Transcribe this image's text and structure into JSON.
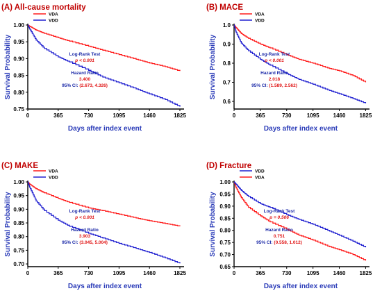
{
  "colors": {
    "VDA": "#ff1a1a",
    "VDD": "#2020d0",
    "title": "#c00000",
    "axis_label": "#2a3bb8",
    "annotation_blue": "#1c2aa8",
    "annotation_red": "#e01515"
  },
  "chart_data": [
    {
      "type": "line",
      "title": "(A) All-cause mortality",
      "xlabel": "Days after index event",
      "ylabel": "Survival Probability",
      "xlim": [
        0,
        1850
      ],
      "ylim": [
        0.75,
        1.0
      ],
      "xticks": [
        0,
        365,
        730,
        1095,
        1460,
        1825
      ],
      "yticks": [
        0.75,
        0.8,
        0.85,
        0.9,
        0.95,
        1.0
      ],
      "ytick_labels": [
        "0.75",
        "0.80",
        "0.85",
        "0.90",
        "0.95",
        "1.00"
      ],
      "legend_order": [
        "VDA",
        "VDD"
      ],
      "series": [
        {
          "name": "VDA",
          "x": [
            0,
            30,
            100,
            200,
            365,
            500,
            730,
            900,
            1095,
            1300,
            1460,
            1650,
            1825
          ],
          "values": [
            1.0,
            0.995,
            0.985,
            0.975,
            0.962,
            0.952,
            0.937,
            0.925,
            0.912,
            0.898,
            0.887,
            0.876,
            0.863
          ]
        },
        {
          "name": "VDD",
          "x": [
            0,
            30,
            100,
            200,
            365,
            500,
            730,
            900,
            1095,
            1300,
            1460,
            1650,
            1825
          ],
          "values": [
            1.0,
            0.985,
            0.955,
            0.93,
            0.905,
            0.89,
            0.865,
            0.845,
            0.828,
            0.81,
            0.795,
            0.778,
            0.757
          ]
        }
      ],
      "annotations": {
        "test_label": "Log-Rank Test",
        "p_value": "p < 0.001",
        "hr_label": "Hazard Ratio",
        "hr_value": "3.400",
        "ci_prefix": "95% CI:",
        "ci_value": "(2.673, 4.326)"
      }
    },
    {
      "type": "line",
      "title": "(B) MACE",
      "xlabel": "Days after index event",
      "ylabel": "Survival Probability",
      "xlim": [
        0,
        1850
      ],
      "ylim": [
        0.56,
        1.0
      ],
      "xticks": [
        0,
        365,
        730,
        1095,
        1460,
        1825
      ],
      "yticks": [
        0.6,
        0.7,
        0.8,
        0.9,
        1.0
      ],
      "ytick_labels": [
        "0.6",
        "0.7",
        "0.8",
        "0.9",
        "1.0"
      ],
      "legend_order": [
        "VDA",
        "VDD"
      ],
      "series": [
        {
          "name": "VDA",
          "x": [
            0,
            30,
            100,
            200,
            365,
            500,
            730,
            900,
            1095,
            1300,
            1460,
            1650,
            1825
          ],
          "values": [
            1.0,
            0.985,
            0.955,
            0.93,
            0.9,
            0.88,
            0.845,
            0.82,
            0.8,
            0.775,
            0.76,
            0.735,
            0.7
          ]
        },
        {
          "name": "VDD",
          "x": [
            0,
            30,
            100,
            200,
            365,
            500,
            730,
            900,
            1095,
            1300,
            1460,
            1650,
            1825
          ],
          "values": [
            1.0,
            0.96,
            0.905,
            0.865,
            0.82,
            0.79,
            0.745,
            0.715,
            0.69,
            0.66,
            0.64,
            0.615,
            0.59
          ]
        }
      ],
      "annotations": {
        "test_label": "Log-Rank Test",
        "p_value": "p < 0.001",
        "hr_label": "Hazard Ratio",
        "hr_value": "2.018",
        "ci_prefix": "95% CI:",
        "ci_value": "(1.589, 2.562)"
      }
    },
    {
      "type": "line",
      "title": "(C) MAKE",
      "xlabel": "Days after index event",
      "ylabel": "Survival Probability",
      "xlim": [
        0,
        1850
      ],
      "ylim": [
        0.69,
        1.0
      ],
      "xticks": [
        0,
        365,
        730,
        1095,
        1460,
        1825
      ],
      "yticks": [
        0.7,
        0.75,
        0.8,
        0.85,
        0.9,
        0.95,
        1.0
      ],
      "ytick_labels": [
        "0.70",
        "0.75",
        "0.80",
        "0.85",
        "0.90",
        "0.95",
        "1.00"
      ],
      "legend_order": [
        "VDA",
        "VDD"
      ],
      "series": [
        {
          "name": "VDA",
          "x": [
            0,
            30,
            100,
            200,
            365,
            500,
            730,
            900,
            1095,
            1300,
            1460,
            1650,
            1825
          ],
          "values": [
            1.0,
            0.99,
            0.975,
            0.96,
            0.94,
            0.925,
            0.905,
            0.895,
            0.882,
            0.868,
            0.858,
            0.848,
            0.838
          ]
        },
        {
          "name": "VDD",
          "x": [
            0,
            30,
            100,
            200,
            365,
            500,
            730,
            900,
            1095,
            1300,
            1460,
            1650,
            1825
          ],
          "values": [
            1.0,
            0.975,
            0.93,
            0.895,
            0.86,
            0.838,
            0.812,
            0.795,
            0.775,
            0.757,
            0.742,
            0.722,
            0.702
          ]
        }
      ],
      "annotations": {
        "test_label": "Log-Rank Test",
        "p_value": "p < 0.001",
        "hr_label": "Hazard Ratio",
        "hr_value": "3.903",
        "ci_prefix": "95% CI:",
        "ci_value": "(3.045, 5.004)"
      }
    },
    {
      "type": "line",
      "title": "(D) Fracture",
      "xlabel": "Days after index event",
      "ylabel": "Survival Probability",
      "xlim": [
        0,
        1850
      ],
      "ylim": [
        0.65,
        1.0
      ],
      "xticks": [
        0,
        365,
        730,
        1095,
        1460,
        1825
      ],
      "yticks": [
        0.65,
        0.7,
        0.75,
        0.8,
        0.85,
        0.9,
        0.95,
        1.0
      ],
      "ytick_labels": [
        "0.65",
        "0.70",
        "0.75",
        "0.80",
        "0.85",
        "0.90",
        "0.95",
        "1.00"
      ],
      "legend_order": [
        "VDD",
        "VDA"
      ],
      "series": [
        {
          "name": "VDA",
          "x": [
            0,
            30,
            100,
            200,
            365,
            500,
            730,
            900,
            1095,
            1300,
            1460,
            1650,
            1825
          ],
          "values": [
            1.0,
            0.975,
            0.935,
            0.895,
            0.86,
            0.835,
            0.805,
            0.78,
            0.76,
            0.735,
            0.72,
            0.7,
            0.675
          ]
        },
        {
          "name": "VDD",
          "x": [
            0,
            30,
            100,
            200,
            365,
            500,
            730,
            900,
            1095,
            1300,
            1460,
            1650,
            1825
          ],
          "values": [
            1.0,
            0.99,
            0.965,
            0.94,
            0.91,
            0.895,
            0.865,
            0.845,
            0.825,
            0.8,
            0.78,
            0.755,
            0.73
          ]
        }
      ],
      "annotations": {
        "test_label": "Log-Rank Test",
        "p_value": "p = 0.506",
        "hr_label": "Hazard Ratio",
        "hr_value": "0.751",
        "ci_prefix": "95% CI:",
        "ci_value": "(0.558, 1.012)"
      }
    }
  ]
}
